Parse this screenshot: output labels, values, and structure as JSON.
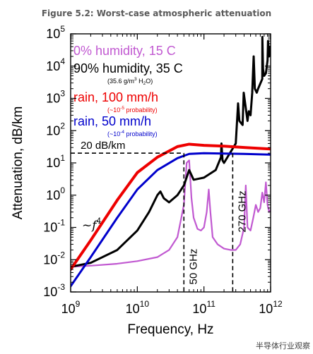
{
  "figure_title": "Figure 5.2: Worst-case atmospheric attenuation",
  "watermark": "半导体行业观察",
  "colors": {
    "magenta": "#c159d1",
    "black": "#000000",
    "red": "#ee0000",
    "blue": "#0000cc"
  },
  "chart_data": {
    "type": "line",
    "title": "",
    "xlabel": "Frequency, Hz",
    "ylabel": "Attenuation, dB/km",
    "xscale": "log",
    "yscale": "log",
    "xlim": [
      1000000000.0,
      1000000000000.0
    ],
    "ylim": [
      0.001,
      100000
    ],
    "grid": false,
    "x_ticks": [
      {
        "value": 1000000000.0,
        "mantissa": "10",
        "exp": "9"
      },
      {
        "value": 10000000000.0,
        "mantissa": "10",
        "exp": "10"
      },
      {
        "value": 100000000000.0,
        "mantissa": "10",
        "exp": "11"
      },
      {
        "value": 1000000000000.0,
        "mantissa": "10",
        "exp": "12"
      }
    ],
    "y_ticks": [
      {
        "value": 0.001,
        "mantissa": "10",
        "exp": "-3"
      },
      {
        "value": 0.01,
        "mantissa": "10",
        "exp": "-2"
      },
      {
        "value": 0.1,
        "mantissa": "10",
        "exp": "-1"
      },
      {
        "value": 1,
        "mantissa": "10",
        "exp": "0"
      },
      {
        "value": 10,
        "mantissa": "10",
        "exp": "1"
      },
      {
        "value": 100,
        "mantissa": "10",
        "exp": "2"
      },
      {
        "value": 1000,
        "mantissa": "10",
        "exp": "3"
      },
      {
        "value": 10000,
        "mantissa": "10",
        "exp": "4"
      },
      {
        "value": 100000,
        "mantissa": "10",
        "exp": "5"
      }
    ],
    "series": [
      {
        "name": "0% humidity, 15 C",
        "color": "#c159d1",
        "x": [
          1000000000.0,
          2000000000.0,
          5000000000.0,
          10000000000.0,
          20000000000.0,
          30000000000.0,
          40000000000.0,
          50000000000.0,
          55000000000.0,
          60000000000.0,
          65000000000.0,
          70000000000.0,
          80000000000.0,
          90000000000.0,
          100000000000.0,
          110000000000.0,
          118000000000.0,
          125000000000.0,
          135000000000.0,
          160000000000.0,
          200000000000.0,
          250000000000.0,
          300000000000.0,
          350000000000.0,
          400000000000.0,
          424000000000.0,
          450000000000.0,
          500000000000.0,
          550000000000.0,
          600000000000.0,
          650000000000.0,
          700000000000.0,
          750000000000.0,
          800000000000.0,
          850000000000.0,
          900000000000.0,
          950000000000.0,
          1000000000000.0
        ],
        "y": [
          0.006,
          0.0065,
          0.0075,
          0.009,
          0.012,
          0.02,
          0.05,
          0.5,
          10,
          12,
          0.8,
          0.2,
          0.09,
          0.08,
          0.1,
          0.3,
          1.5,
          0.3,
          0.05,
          0.03,
          0.022,
          0.02,
          0.02,
          0.03,
          0.1,
          2,
          0.1,
          0.08,
          0.2,
          0.5,
          0.3,
          0.4,
          1.2,
          0.6,
          2.5,
          0.5,
          0.3,
          0.35
        ]
      },
      {
        "name": "90% humidity, 35 C",
        "color": "#000000",
        "x": [
          1000000000.0,
          2000000000.0,
          5000000000.0,
          10000000000.0,
          15000000000.0,
          20000000000.0,
          22200000000.0,
          25000000000.0,
          30000000000.0,
          40000000000.0,
          50000000000.0,
          60000000000.0,
          70000000000.0,
          100000000000.0,
          150000000000.0,
          180000000000.0,
          183000000000.0,
          190000000000.0,
          200000000000.0,
          300000000000.0,
          325000000000.0,
          340000000000.0,
          380000000000.0,
          395000000000.0,
          450000000000.0,
          470000000000.0,
          500000000000.0,
          530000000000.0,
          557000000000.0,
          580000000000.0,
          620000000000.0,
          650000000000.0,
          750000000000.0,
          752000000000.0,
          770000000000.0,
          800000000000.0,
          850000000000.0,
          900000000000.0,
          915000000000.0,
          950000000000.0,
          990000000000.0,
          1000000000000.0
        ],
        "y": [
          0.006,
          0.008,
          0.02,
          0.08,
          0.3,
          1.0,
          1.3,
          0.8,
          0.6,
          1.0,
          2.0,
          6.0,
          3.0,
          3.5,
          6.0,
          15,
          40,
          12,
          10,
          40,
          700,
          200,
          150,
          1500,
          200,
          400,
          300,
          1500,
          20000,
          2000,
          1500,
          2000,
          4000,
          80000,
          8000,
          5000,
          6000,
          15000,
          60000,
          20000,
          40000,
          30000
        ]
      },
      {
        "name": "rain, 100 mm/h",
        "color": "#ee0000",
        "x": [
          1000000000.0,
          2000000000.0,
          5000000000.0,
          10000000000.0,
          20000000000.0,
          40000000000.0,
          60000000000.0,
          100000000000.0,
          200000000000.0,
          400000000000.0,
          1000000000000.0
        ],
        "y": [
          0.005,
          0.04,
          0.7,
          5,
          15,
          32,
          38,
          35,
          33,
          30,
          27
        ]
      },
      {
        "name": "rain, 50 mm/h",
        "color": "#0000cc",
        "x": [
          1000000000.0,
          2000000000.0,
          5000000000.0,
          10000000000.0,
          20000000000.0,
          40000000000.0,
          60000000000.0,
          100000000000.0,
          200000000000.0,
          400000000000.0,
          1000000000000.0
        ],
        "y": [
          0.0015,
          0.012,
          0.2,
          1.5,
          6,
          14,
          19,
          20,
          19.5,
          19,
          18
        ]
      }
    ],
    "legend": {
      "placement": "top-left",
      "entries": [
        {
          "label": "0% humidity, 15 C",
          "note": "",
          "color": "#c159d1"
        },
        {
          "label": "90% humidity, 35 C",
          "note_pre": "(35.6 g/m",
          "note_sup": "3",
          "note_mid": " H",
          "note_sub": "2",
          "note_post": "O)",
          "color": "#000000"
        },
        {
          "label": "rain, 100 mm/h",
          "note_pre": "(~10",
          "note_sup": "-5",
          "note_post": " probability)",
          "color": "#ee0000"
        },
        {
          "label": "rain, 50 mm/h",
          "note_pre": "(~10",
          "note_sup": "-4",
          "note_post": " probability)",
          "color": "#0000cc"
        }
      ]
    },
    "annotations": {
      "h_line": {
        "y": 20,
        "x_end": 50000000000.0,
        "label": "20 dB/km"
      },
      "v_lines": [
        {
          "x": 50000000000.0,
          "label": "50 GHz"
        },
        {
          "x": 270000000000.0,
          "label": "270 GHz"
        }
      ],
      "slope": {
        "base": "~f",
        "exp": "4"
      }
    }
  }
}
